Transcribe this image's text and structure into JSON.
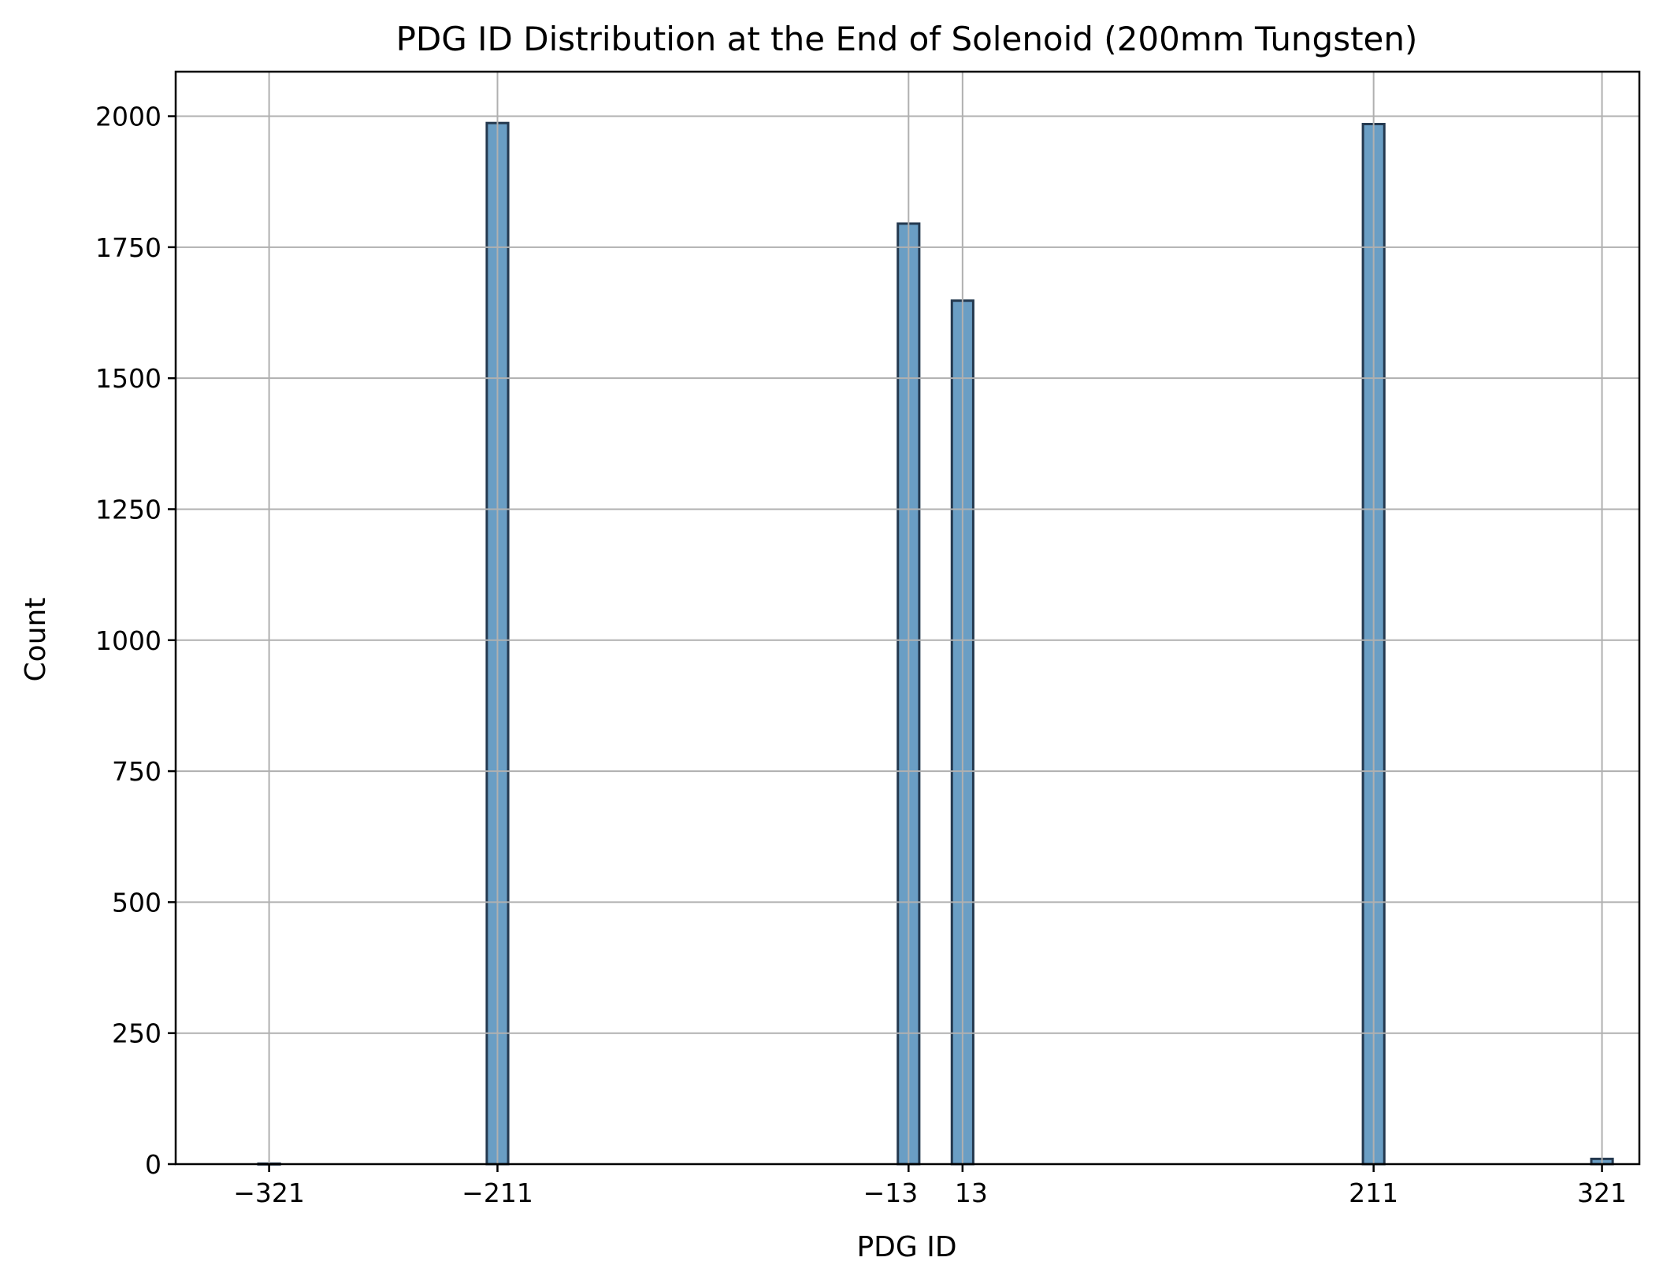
{
  "chart_data": {
    "type": "bar",
    "title": "PDG ID Distribution at the End of Solenoid (200mm Tungsten)",
    "xlabel": "PDG ID",
    "ylabel": "Count",
    "xlim": [
      -366,
      339
    ],
    "ylim": [
      0,
      2085
    ],
    "x_ticks": [
      -321,
      -211,
      -13,
      13,
      211,
      321
    ],
    "x_tick_labels": [
      "−321",
      "−211",
      "−13",
      "13",
      "211",
      "321"
    ],
    "y_ticks": [
      0,
      250,
      500,
      750,
      1000,
      1250,
      1500,
      1750,
      2000
    ],
    "y_tick_labels": [
      "0",
      "250",
      "500",
      "750",
      "1000",
      "1250",
      "1500",
      "1750",
      "2000"
    ],
    "bin_width": 10.3,
    "x": [
      -321,
      -211,
      -13,
      13,
      211,
      321
    ],
    "values": [
      1,
      1987,
      1795,
      1648,
      1985,
      10
    ],
    "bar_color": "#6a9ec4",
    "edge_color": "#24394f",
    "grid": true,
    "grid_color": "#b0b0b0"
  }
}
